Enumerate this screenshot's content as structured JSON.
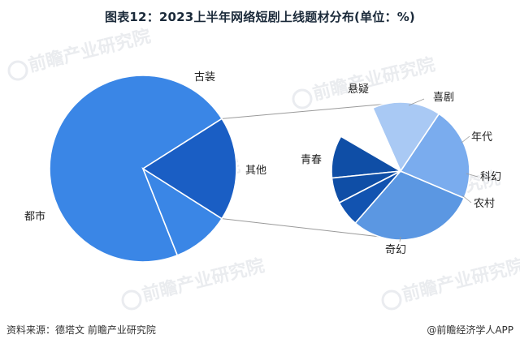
{
  "title": "图表12：2023上半年网络短剧上线题材分布(单位：%)",
  "source": "资料来源：德塔文 前瞻产业研究院",
  "brand": "@前瞻经济学人APP",
  "watermark": "前瞻产业研究院",
  "chart_data": [
    {
      "type": "pie",
      "slices": [
        {
          "label": "都市",
          "value": 72,
          "color": "#3a86e6"
        },
        {
          "label": "古装",
          "value": 10,
          "color": "#3a86e6"
        },
        {
          "label": "其他",
          "value": 18,
          "color": "#1a5ec4"
        }
      ]
    },
    {
      "type": "pie",
      "expands": "其他",
      "slices": [
        {
          "label": "奇幻",
          "value": 30,
          "color": "#5b97e2"
        },
        {
          "label": "青春",
          "value": 22,
          "color": "#7aacee"
        },
        {
          "label": "悬疑",
          "value": 16,
          "color": "#a9c9f4"
        },
        {
          "label": "喜剧",
          "value": 10,
          "color": "#ffffff"
        },
        {
          "label": "年代",
          "value": 10,
          "color": "#0f4ea6"
        },
        {
          "label": "科幻",
          "value": 6,
          "color": "#0f4ea6"
        },
        {
          "label": "农村",
          "value": 6,
          "color": "#1253b0"
        }
      ]
    }
  ]
}
